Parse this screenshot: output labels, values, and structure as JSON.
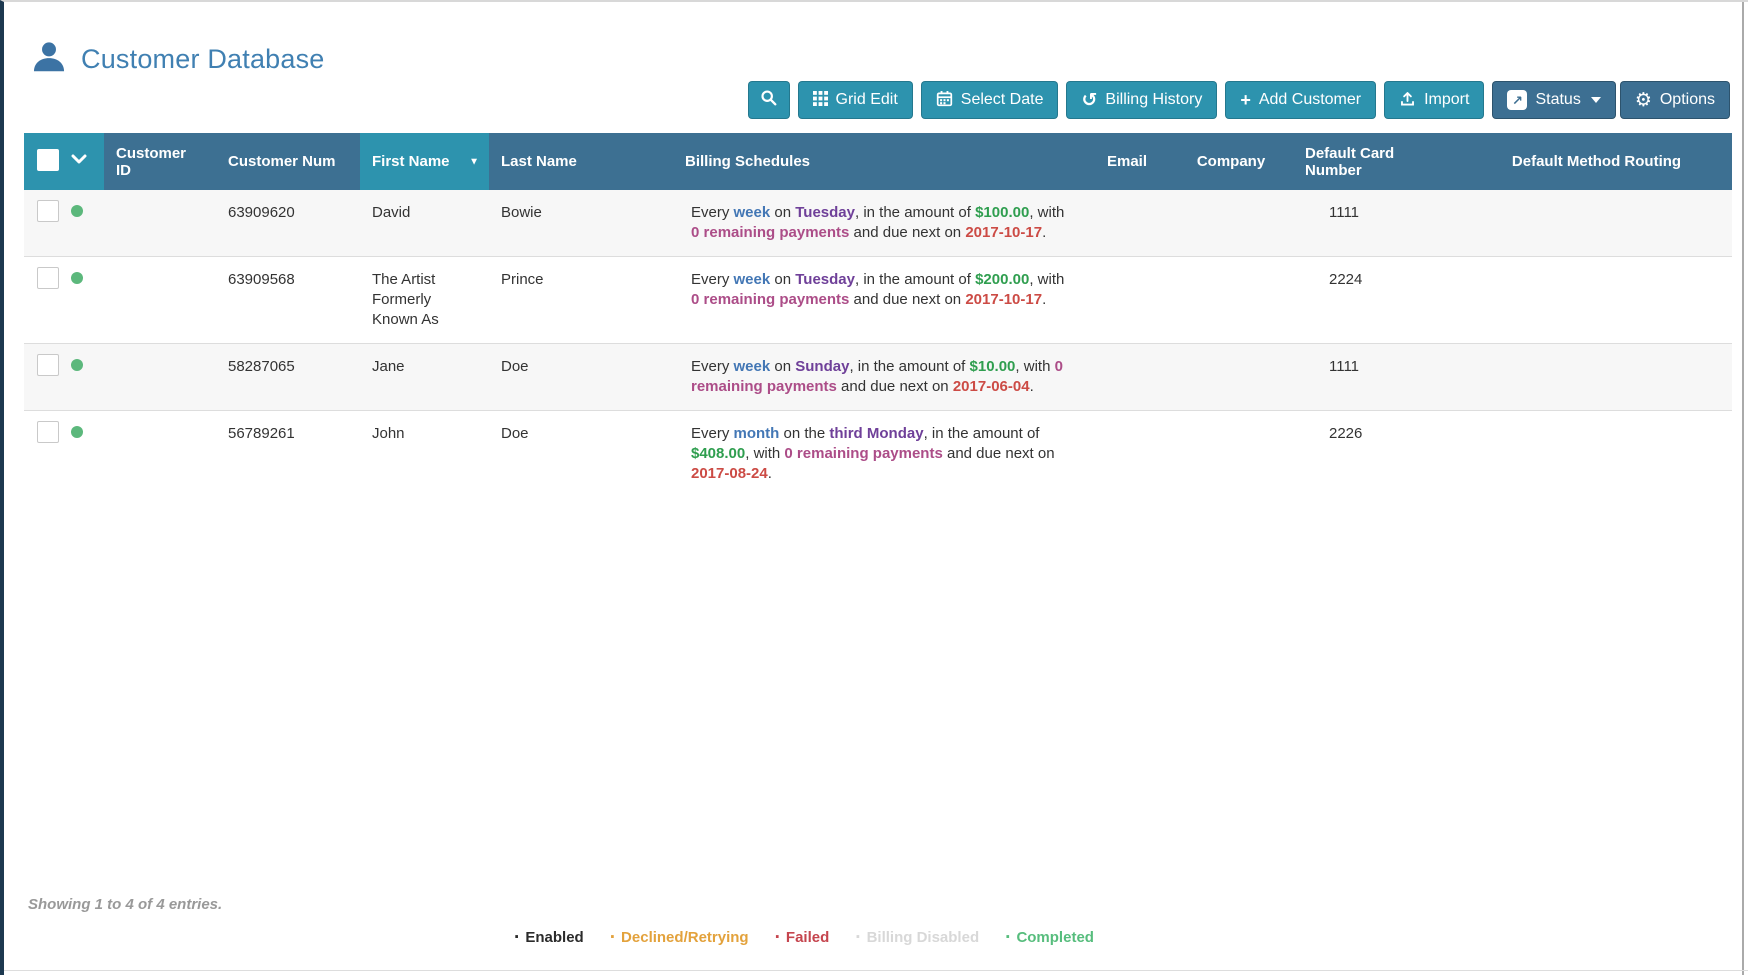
{
  "colors": {
    "teal": "#2d93ae",
    "slate": "#3d7092",
    "btn-dark": "#3d6f92",
    "title-blue": "#4080b2",
    "icon-blue": "#3c73a4",
    "dot-green": "#5cb87c",
    "stripe": "#f7f7f7",
    "row-border": "#dddddd",
    "muted": "#999999",
    "seg-interval": "#4377b5",
    "seg-day": "#6f4099",
    "seg-amount": "#2f9e4f",
    "seg-payments": "#ac4d88",
    "seg-date": "#cc4b45"
  },
  "header": {
    "title": "Customer Database"
  },
  "toolbar": {
    "grid_edit": "Grid Edit",
    "select_date": "Select Date",
    "billing_history": "Billing History",
    "add_customer": "Add Customer",
    "import": "Import",
    "status": "Status",
    "options": "Options"
  },
  "table": {
    "columns": [
      "Customer ID",
      "Customer Num",
      "First Name",
      "Last Name",
      "Billing Schedules",
      "Email",
      "Company",
      "Default Card Number",
      "Default Method Routing"
    ],
    "sorted_column": "First Name",
    "sort_direction": "descending",
    "rows": [
      {
        "status": "enabled",
        "customer_id": "",
        "customer_num": "63909620",
        "first_name": "David",
        "last_name": "Bowie",
        "billing_schedule": [
          {
            "t": "Every ",
            "c": "plain"
          },
          {
            "t": "week",
            "c": "interval"
          },
          {
            "t": " on ",
            "c": "plain"
          },
          {
            "t": "Tuesday",
            "c": "day"
          },
          {
            "t": ", in the amount of ",
            "c": "plain"
          },
          {
            "t": "$100.00",
            "c": "amount"
          },
          {
            "t": ", with ",
            "c": "plain"
          },
          {
            "t": "0 remaining payments",
            "c": "payments"
          },
          {
            "t": " and due next on ",
            "c": "plain"
          },
          {
            "t": "2017-10-17",
            "c": "date"
          },
          {
            "t": ".",
            "c": "plain"
          }
        ],
        "email": "",
        "company": "",
        "default_card_number": "1111",
        "default_method_routing": ""
      },
      {
        "status": "enabled",
        "customer_id": "",
        "customer_num": "63909568",
        "first_name": "The Artist Formerly Known As",
        "last_name": "Prince",
        "billing_schedule": [
          {
            "t": "Every ",
            "c": "plain"
          },
          {
            "t": "week",
            "c": "interval"
          },
          {
            "t": " on ",
            "c": "plain"
          },
          {
            "t": "Tuesday",
            "c": "day"
          },
          {
            "t": ", in the amount of ",
            "c": "plain"
          },
          {
            "t": "$200.00",
            "c": "amount"
          },
          {
            "t": ", with ",
            "c": "plain"
          },
          {
            "t": "0 remaining payments",
            "c": "payments"
          },
          {
            "t": " and due next on ",
            "c": "plain"
          },
          {
            "t": "2017-10-17",
            "c": "date"
          },
          {
            "t": ".",
            "c": "plain"
          }
        ],
        "email": "",
        "company": "",
        "default_card_number": "2224",
        "default_method_routing": ""
      },
      {
        "status": "enabled",
        "customer_id": "",
        "customer_num": "58287065",
        "first_name": "Jane",
        "last_name": "Doe",
        "billing_schedule": [
          {
            "t": "Every ",
            "c": "plain"
          },
          {
            "t": "week",
            "c": "interval"
          },
          {
            "t": " on ",
            "c": "plain"
          },
          {
            "t": "Sunday",
            "c": "day"
          },
          {
            "t": ", in the amount of ",
            "c": "plain"
          },
          {
            "t": "$10.00",
            "c": "amount"
          },
          {
            "t": ", with ",
            "c": "plain"
          },
          {
            "t": "0 remaining payments",
            "c": "payments"
          },
          {
            "t": " and due next on ",
            "c": "plain"
          },
          {
            "t": "2017-06-04",
            "c": "date"
          },
          {
            "t": ".",
            "c": "plain"
          }
        ],
        "email": "",
        "company": "",
        "default_card_number": "1111",
        "default_method_routing": ""
      },
      {
        "status": "enabled",
        "customer_id": "",
        "customer_num": "56789261",
        "first_name": "John",
        "last_name": "Doe",
        "billing_schedule": [
          {
            "t": "Every ",
            "c": "plain"
          },
          {
            "t": "month",
            "c": "interval"
          },
          {
            "t": " on the ",
            "c": "plain"
          },
          {
            "t": "third Monday",
            "c": "day"
          },
          {
            "t": ", in the amount of ",
            "c": "plain"
          },
          {
            "t": "$408.00",
            "c": "amount"
          },
          {
            "t": ", with ",
            "c": "plain"
          },
          {
            "t": "0 remaining payments",
            "c": "payments"
          },
          {
            "t": " and due next on ",
            "c": "plain"
          },
          {
            "t": "2017-08-24",
            "c": "date"
          },
          {
            "t": ".",
            "c": "plain"
          }
        ],
        "email": "",
        "company": "",
        "default_card_number": "2226",
        "default_method_routing": ""
      }
    ]
  },
  "footer": {
    "showing": "Showing 1 to 4 of 4 entries."
  },
  "legend": {
    "items": [
      {
        "label": "Enabled",
        "color": "#2b2b2b"
      },
      {
        "label": "Declined/Retrying",
        "color": "#e3a23c"
      },
      {
        "label": "Failed",
        "color": "#c5454e"
      },
      {
        "label": "Billing Disabled",
        "color": "#d8d8d8"
      },
      {
        "label": "Completed",
        "color": "#57bd7d"
      }
    ]
  }
}
